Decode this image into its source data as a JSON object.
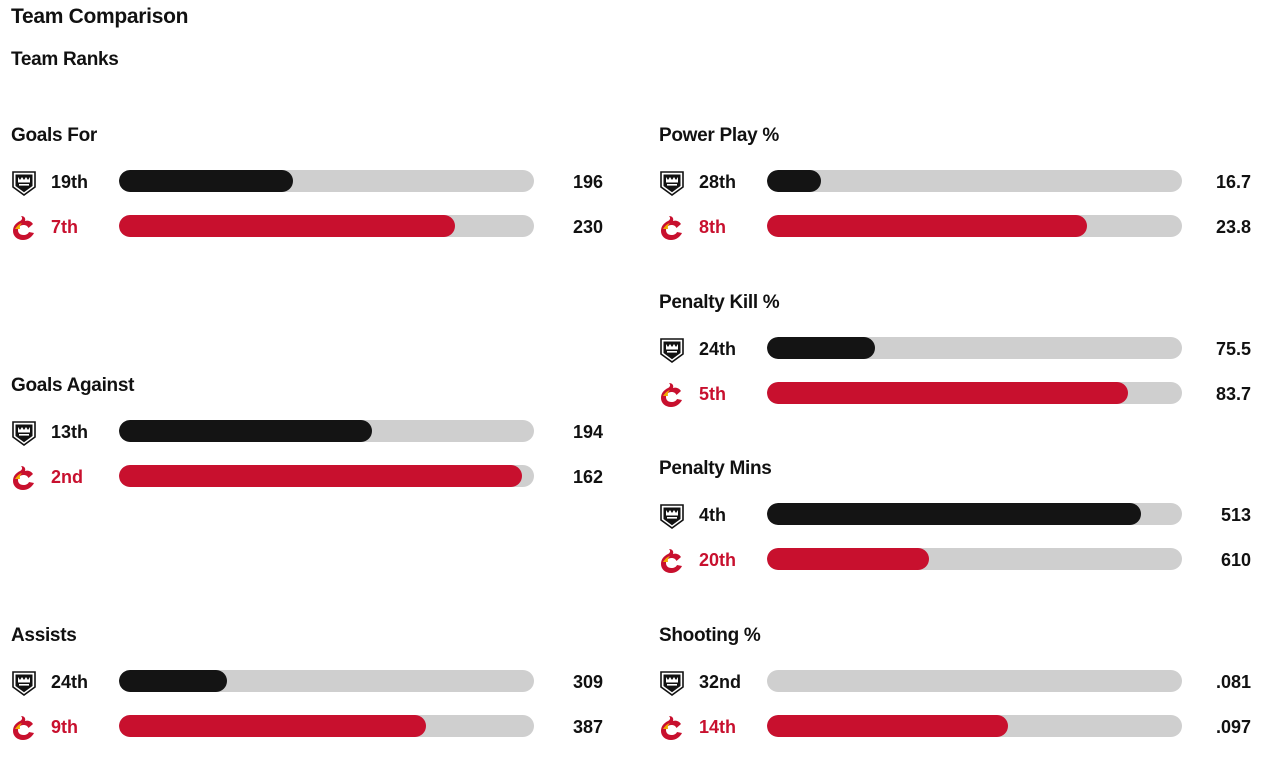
{
  "page": {
    "title": "Team Comparison",
    "subtitle": "Team Ranks"
  },
  "colors": {
    "lak": "#141414",
    "cgy": "#c8102e",
    "track": "#cfcfcf"
  },
  "teams": {
    "lak": {
      "logo_icon": "kings-crown-shield-icon"
    },
    "cgy": {
      "logo_icon": "flames-c-logo-icon"
    }
  },
  "stats": [
    {
      "title": "Goals For",
      "lak": {
        "rank": "19th",
        "value": "196",
        "fill": 0.42
      },
      "cgy": {
        "rank": "7th",
        "value": "230",
        "fill": 0.81
      }
    },
    {
      "title": "Goals Against",
      "lak": {
        "rank": "13th",
        "value": "194",
        "fill": 0.61
      },
      "cgy": {
        "rank": "2nd",
        "value": "162",
        "fill": 0.97
      }
    },
    {
      "title": "Assists",
      "lak": {
        "rank": "24th",
        "value": "309",
        "fill": 0.26
      },
      "cgy": {
        "rank": "9th",
        "value": "387",
        "fill": 0.74
      }
    },
    {
      "title": "Power Play %",
      "lak": {
        "rank": "28th",
        "value": "16.7",
        "fill": 0.13
      },
      "cgy": {
        "rank": "8th",
        "value": "23.8",
        "fill": 0.77
      }
    },
    {
      "title": "Penalty Kill %",
      "lak": {
        "rank": "24th",
        "value": "75.5",
        "fill": 0.26
      },
      "cgy": {
        "rank": "5th",
        "value": "83.7",
        "fill": 0.87
      }
    },
    {
      "title": "Penalty Mins",
      "lak": {
        "rank": "4th",
        "value": "513",
        "fill": 0.9
      },
      "cgy": {
        "rank": "20th",
        "value": "610",
        "fill": 0.39
      }
    },
    {
      "title": "Shooting %",
      "lak": {
        "rank": "32nd",
        "value": ".081",
        "fill": 0.0
      },
      "cgy": {
        "rank": "14th",
        "value": ".097",
        "fill": 0.58
      }
    }
  ]
}
